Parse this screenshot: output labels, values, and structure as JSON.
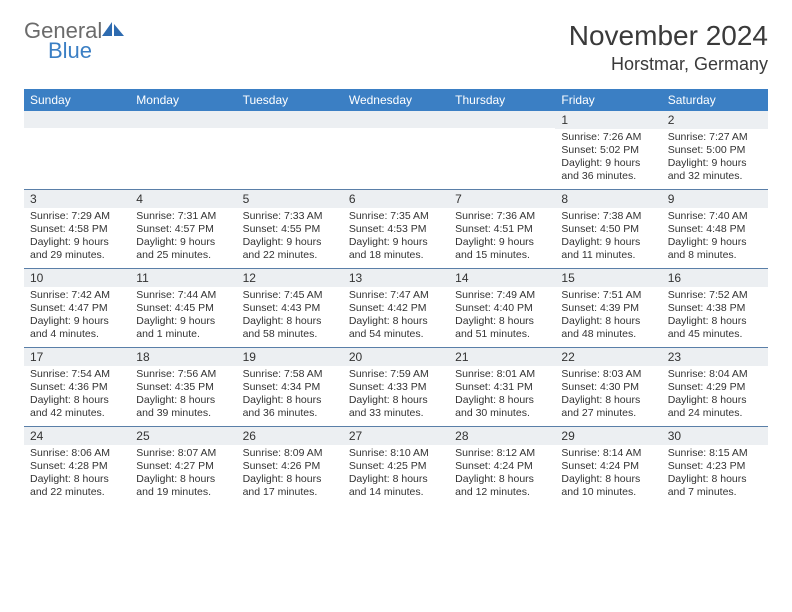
{
  "logo": {
    "word1": "General",
    "word2": "Blue"
  },
  "title": "November 2024",
  "location": "Horstmar, Germany",
  "colors": {
    "header_bg": "#3b7fc4",
    "header_text": "#ffffff",
    "daynum_bg": "#eceff2",
    "week_border": "#5a7fa8",
    "text": "#333333",
    "logo_gray": "#6b6b6b",
    "logo_blue": "#3b7fc4"
  },
  "weekdays": [
    "Sunday",
    "Monday",
    "Tuesday",
    "Wednesday",
    "Thursday",
    "Friday",
    "Saturday"
  ],
  "weeks": [
    [
      {
        "n": "",
        "sr": "",
        "ss": "",
        "dl": ""
      },
      {
        "n": "",
        "sr": "",
        "ss": "",
        "dl": ""
      },
      {
        "n": "",
        "sr": "",
        "ss": "",
        "dl": ""
      },
      {
        "n": "",
        "sr": "",
        "ss": "",
        "dl": ""
      },
      {
        "n": "",
        "sr": "",
        "ss": "",
        "dl": ""
      },
      {
        "n": "1",
        "sr": "Sunrise: 7:26 AM",
        "ss": "Sunset: 5:02 PM",
        "dl": "Daylight: 9 hours and 36 minutes."
      },
      {
        "n": "2",
        "sr": "Sunrise: 7:27 AM",
        "ss": "Sunset: 5:00 PM",
        "dl": "Daylight: 9 hours and 32 minutes."
      }
    ],
    [
      {
        "n": "3",
        "sr": "Sunrise: 7:29 AM",
        "ss": "Sunset: 4:58 PM",
        "dl": "Daylight: 9 hours and 29 minutes."
      },
      {
        "n": "4",
        "sr": "Sunrise: 7:31 AM",
        "ss": "Sunset: 4:57 PM",
        "dl": "Daylight: 9 hours and 25 minutes."
      },
      {
        "n": "5",
        "sr": "Sunrise: 7:33 AM",
        "ss": "Sunset: 4:55 PM",
        "dl": "Daylight: 9 hours and 22 minutes."
      },
      {
        "n": "6",
        "sr": "Sunrise: 7:35 AM",
        "ss": "Sunset: 4:53 PM",
        "dl": "Daylight: 9 hours and 18 minutes."
      },
      {
        "n": "7",
        "sr": "Sunrise: 7:36 AM",
        "ss": "Sunset: 4:51 PM",
        "dl": "Daylight: 9 hours and 15 minutes."
      },
      {
        "n": "8",
        "sr": "Sunrise: 7:38 AM",
        "ss": "Sunset: 4:50 PM",
        "dl": "Daylight: 9 hours and 11 minutes."
      },
      {
        "n": "9",
        "sr": "Sunrise: 7:40 AM",
        "ss": "Sunset: 4:48 PM",
        "dl": "Daylight: 9 hours and 8 minutes."
      }
    ],
    [
      {
        "n": "10",
        "sr": "Sunrise: 7:42 AM",
        "ss": "Sunset: 4:47 PM",
        "dl": "Daylight: 9 hours and 4 minutes."
      },
      {
        "n": "11",
        "sr": "Sunrise: 7:44 AM",
        "ss": "Sunset: 4:45 PM",
        "dl": "Daylight: 9 hours and 1 minute."
      },
      {
        "n": "12",
        "sr": "Sunrise: 7:45 AM",
        "ss": "Sunset: 4:43 PM",
        "dl": "Daylight: 8 hours and 58 minutes."
      },
      {
        "n": "13",
        "sr": "Sunrise: 7:47 AM",
        "ss": "Sunset: 4:42 PM",
        "dl": "Daylight: 8 hours and 54 minutes."
      },
      {
        "n": "14",
        "sr": "Sunrise: 7:49 AM",
        "ss": "Sunset: 4:40 PM",
        "dl": "Daylight: 8 hours and 51 minutes."
      },
      {
        "n": "15",
        "sr": "Sunrise: 7:51 AM",
        "ss": "Sunset: 4:39 PM",
        "dl": "Daylight: 8 hours and 48 minutes."
      },
      {
        "n": "16",
        "sr": "Sunrise: 7:52 AM",
        "ss": "Sunset: 4:38 PM",
        "dl": "Daylight: 8 hours and 45 minutes."
      }
    ],
    [
      {
        "n": "17",
        "sr": "Sunrise: 7:54 AM",
        "ss": "Sunset: 4:36 PM",
        "dl": "Daylight: 8 hours and 42 minutes."
      },
      {
        "n": "18",
        "sr": "Sunrise: 7:56 AM",
        "ss": "Sunset: 4:35 PM",
        "dl": "Daylight: 8 hours and 39 minutes."
      },
      {
        "n": "19",
        "sr": "Sunrise: 7:58 AM",
        "ss": "Sunset: 4:34 PM",
        "dl": "Daylight: 8 hours and 36 minutes."
      },
      {
        "n": "20",
        "sr": "Sunrise: 7:59 AM",
        "ss": "Sunset: 4:33 PM",
        "dl": "Daylight: 8 hours and 33 minutes."
      },
      {
        "n": "21",
        "sr": "Sunrise: 8:01 AM",
        "ss": "Sunset: 4:31 PM",
        "dl": "Daylight: 8 hours and 30 minutes."
      },
      {
        "n": "22",
        "sr": "Sunrise: 8:03 AM",
        "ss": "Sunset: 4:30 PM",
        "dl": "Daylight: 8 hours and 27 minutes."
      },
      {
        "n": "23",
        "sr": "Sunrise: 8:04 AM",
        "ss": "Sunset: 4:29 PM",
        "dl": "Daylight: 8 hours and 24 minutes."
      }
    ],
    [
      {
        "n": "24",
        "sr": "Sunrise: 8:06 AM",
        "ss": "Sunset: 4:28 PM",
        "dl": "Daylight: 8 hours and 22 minutes."
      },
      {
        "n": "25",
        "sr": "Sunrise: 8:07 AM",
        "ss": "Sunset: 4:27 PM",
        "dl": "Daylight: 8 hours and 19 minutes."
      },
      {
        "n": "26",
        "sr": "Sunrise: 8:09 AM",
        "ss": "Sunset: 4:26 PM",
        "dl": "Daylight: 8 hours and 17 minutes."
      },
      {
        "n": "27",
        "sr": "Sunrise: 8:10 AM",
        "ss": "Sunset: 4:25 PM",
        "dl": "Daylight: 8 hours and 14 minutes."
      },
      {
        "n": "28",
        "sr": "Sunrise: 8:12 AM",
        "ss": "Sunset: 4:24 PM",
        "dl": "Daylight: 8 hours and 12 minutes."
      },
      {
        "n": "29",
        "sr": "Sunrise: 8:14 AM",
        "ss": "Sunset: 4:24 PM",
        "dl": "Daylight: 8 hours and 10 minutes."
      },
      {
        "n": "30",
        "sr": "Sunrise: 8:15 AM",
        "ss": "Sunset: 4:23 PM",
        "dl": "Daylight: 8 hours and 7 minutes."
      }
    ]
  ]
}
